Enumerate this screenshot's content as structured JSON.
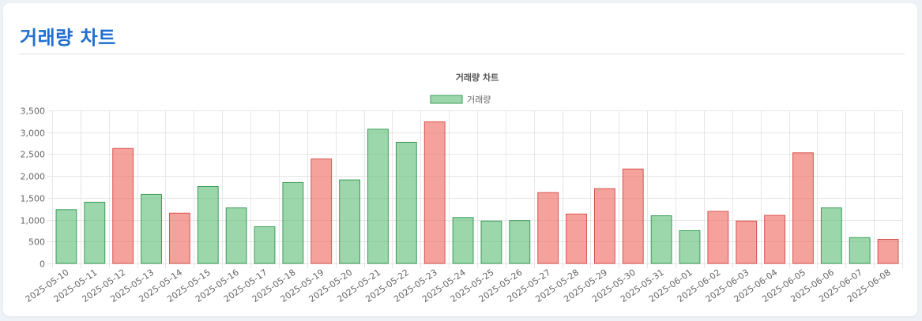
{
  "header": {
    "title": "거래량 차트"
  },
  "colors": {
    "up_fill": "rgba(239,105,96,0.62)",
    "up_stroke": "#d9534f",
    "down_fill": "rgba(95,190,120,0.62)",
    "down_stroke": "#3a9b58",
    "grid": "#e6e6e6",
    "title": "#1f6fd1"
  },
  "chart_data": {
    "type": "bar",
    "title": "거래량 차트",
    "legend": {
      "label": "거래량",
      "position": "top"
    },
    "xlabel": "",
    "ylabel": "",
    "ylim": [
      0,
      3500
    ],
    "yticks": [
      0,
      500,
      1000,
      1500,
      2000,
      2500,
      3000,
      3500
    ],
    "ytick_labels": [
      "0",
      "500",
      "1,000",
      "1,500",
      "2,000",
      "2,500",
      "3,000",
      "3,500"
    ],
    "grid": true,
    "categories": [
      "2025-05-10",
      "2025-05-11",
      "2025-05-12",
      "2025-05-13",
      "2025-05-14",
      "2025-05-15",
      "2025-05-16",
      "2025-05-17",
      "2025-05-18",
      "2025-05-19",
      "2025-05-20",
      "2025-05-21",
      "2025-05-22",
      "2025-05-23",
      "2025-05-24",
      "2025-05-25",
      "2025-05-26",
      "2025-05-27",
      "2025-05-28",
      "2025-05-29",
      "2025-05-30",
      "2025-05-31",
      "2025-06-01",
      "2025-06-02",
      "2025-06-03",
      "2025-06-04",
      "2025-06-05",
      "2025-06-06",
      "2025-06-07",
      "2025-06-08"
    ],
    "values": [
      1230,
      1400,
      2630,
      1580,
      1150,
      1760,
      1270,
      840,
      1850,
      2390,
      1910,
      3070,
      2770,
      3240,
      1050,
      970,
      980,
      1620,
      1130,
      1710,
      2160,
      1090,
      750,
      1190,
      970,
      1100,
      2530,
      1270,
      590,
      550
    ],
    "bar_colors": [
      "green",
      "green",
      "red",
      "green",
      "red",
      "green",
      "green",
      "green",
      "green",
      "red",
      "green",
      "green",
      "green",
      "red",
      "green",
      "green",
      "green",
      "red",
      "red",
      "red",
      "red",
      "green",
      "green",
      "red",
      "red",
      "red",
      "red",
      "green",
      "green",
      "red"
    ]
  }
}
